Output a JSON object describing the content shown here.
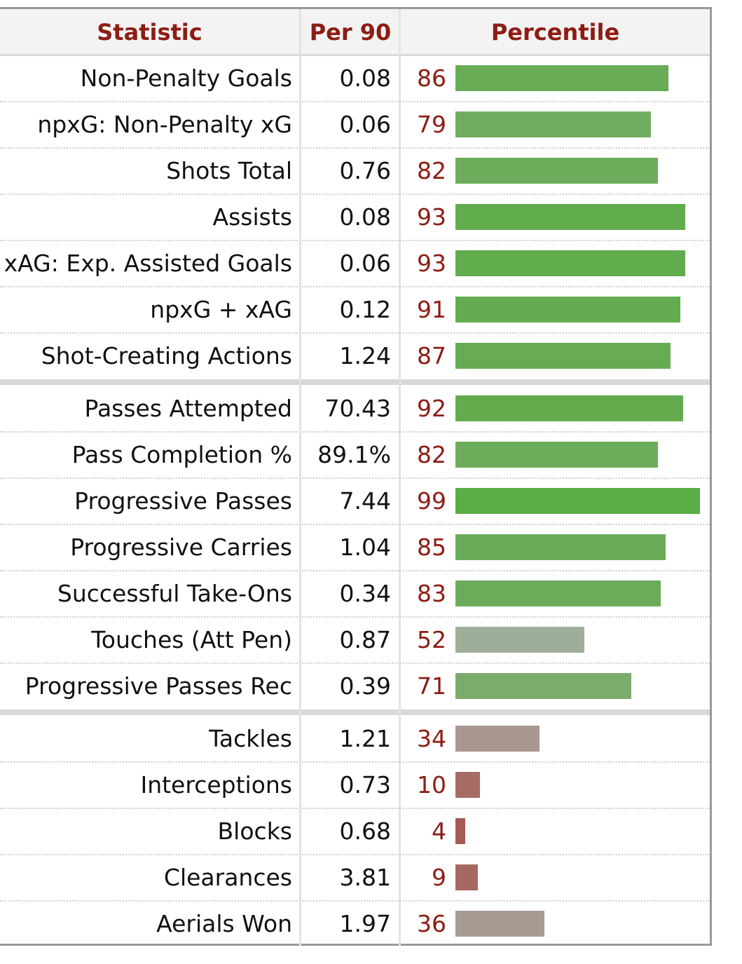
{
  "header": {
    "statistic": "Statistic",
    "per90": "Per 90",
    "percentile": "Percentile"
  },
  "colors": {
    "header_text": "#8d1d14",
    "percentile_text": "#8d1d14",
    "bar_high": "#5aac44",
    "bar_mid": "#a9aea7",
    "bar_low": "#a4433b"
  },
  "groups": [
    {
      "rows": [
        {
          "stat": "Non-Penalty Goals",
          "per90": "0.08",
          "pct": "86",
          "pct_value": 86
        },
        {
          "stat": "npxG: Non-Penalty xG",
          "per90": "0.06",
          "pct": "79",
          "pct_value": 79
        },
        {
          "stat": "Shots Total",
          "per90": "0.76",
          "pct": "82",
          "pct_value": 82
        },
        {
          "stat": "Assists",
          "per90": "0.08",
          "pct": "93",
          "pct_value": 93
        },
        {
          "stat": "xAG: Exp. Assisted Goals",
          "per90": "0.06",
          "pct": "93",
          "pct_value": 93
        },
        {
          "stat": "npxG + xAG",
          "per90": "0.12",
          "pct": "91",
          "pct_value": 91
        },
        {
          "stat": "Shot-Creating Actions",
          "per90": "1.24",
          "pct": "87",
          "pct_value": 87
        }
      ]
    },
    {
      "rows": [
        {
          "stat": "Passes Attempted",
          "per90": "70.43",
          "pct": "92",
          "pct_value": 92
        },
        {
          "stat": "Pass Completion %",
          "per90": "89.1%",
          "pct": "82",
          "pct_value": 82
        },
        {
          "stat": "Progressive Passes",
          "per90": "7.44",
          "pct": "99",
          "pct_value": 99
        },
        {
          "stat": "Progressive Carries",
          "per90": "1.04",
          "pct": "85",
          "pct_value": 85
        },
        {
          "stat": "Successful Take-Ons",
          "per90": "0.34",
          "pct": "83",
          "pct_value": 83
        },
        {
          "stat": "Touches (Att Pen)",
          "per90": "0.87",
          "pct": "52",
          "pct_value": 52
        },
        {
          "stat": "Progressive Passes Rec",
          "per90": "0.39",
          "pct": "71",
          "pct_value": 71
        }
      ]
    },
    {
      "rows": [
        {
          "stat": "Tackles",
          "per90": "1.21",
          "pct": "34",
          "pct_value": 34
        },
        {
          "stat": "Interceptions",
          "per90": "0.73",
          "pct": "10",
          "pct_value": 10
        },
        {
          "stat": "Blocks",
          "per90": "0.68",
          "pct": "4",
          "pct_value": 4
        },
        {
          "stat": "Clearances",
          "per90": "3.81",
          "pct": "9",
          "pct_value": 9
        },
        {
          "stat": "Aerials Won",
          "per90": "1.97",
          "pct": "36",
          "pct_value": 36
        }
      ]
    }
  ]
}
